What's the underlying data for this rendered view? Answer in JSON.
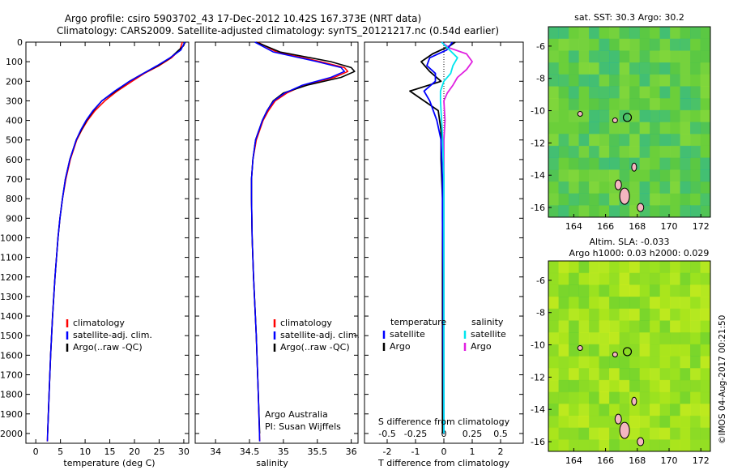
{
  "header": {
    "title_line1": "Argo profile: csiro 5903702_43 17-Dec-2012 10.42S 167.373E (NRT data)",
    "title_line2": "Climatology: CARS2009. Satellite-adjusted climatology: synTS_20121217.nc (0.54d earlier)"
  },
  "colors": {
    "climatology": "#ff0000",
    "satellite": "#0000ff",
    "argo": "#000000",
    "salinity_satellite": "#00e5ee",
    "salinity_argo": "#e020e0"
  },
  "chart_data": [
    {
      "id": "temperature",
      "type": "line",
      "xlabel": "temperature (deg C)",
      "ylabel": "",
      "xlim": [
        -2,
        31
      ],
      "ylim": [
        2050,
        0
      ],
      "x_ticks": [
        "0",
        "5",
        "10",
        "15",
        "20",
        "25",
        "30"
      ],
      "x_tick_values": [
        0,
        5,
        10,
        15,
        20,
        25,
        30
      ],
      "y_ticks": [
        "0",
        "100",
        "200",
        "300",
        "400",
        "500",
        "600",
        "700",
        "800",
        "900",
        "1000",
        "1100",
        "1200",
        "1300",
        "1400",
        "1500",
        "1600",
        "1700",
        "1800",
        "1900",
        "2000"
      ],
      "y_tick_values": [
        0,
        100,
        200,
        300,
        400,
        500,
        600,
        700,
        800,
        900,
        1000,
        1100,
        1200,
        1300,
        1400,
        1500,
        1600,
        1700,
        1800,
        1900,
        2000
      ],
      "legend": [
        "climatology",
        "satellite-adj. clim.",
        "Argo(..raw -QC)"
      ],
      "legend_position": "lower-center",
      "series": [
        {
          "name": "climatology",
          "depth": [
            0,
            40,
            80,
            120,
            160,
            200,
            250,
            300,
            350,
            400,
            450,
            500,
            600,
            700,
            800,
            900,
            1000,
            1200,
            1400,
            1600,
            1800,
            2000,
            2040
          ],
          "values": [
            29.7,
            29.2,
            27.5,
            25.0,
            22.0,
            19.5,
            16.5,
            14.0,
            12.0,
            10.5,
            9.3,
            8.3,
            7.0,
            6.1,
            5.4,
            4.9,
            4.5,
            3.9,
            3.4,
            3.0,
            2.7,
            2.4,
            2.35
          ]
        },
        {
          "name": "satellite-adj. clim.",
          "depth": [
            0,
            40,
            80,
            120,
            160,
            200,
            250,
            300,
            350,
            400,
            450,
            500,
            600,
            700,
            800,
            900,
            1000,
            1200,
            1400,
            1600,
            1800,
            2000,
            2040
          ],
          "values": [
            30.2,
            29.4,
            27.2,
            24.6,
            21.8,
            19.0,
            16.0,
            13.4,
            11.6,
            10.2,
            9.1,
            8.2,
            6.9,
            6.0,
            5.4,
            4.9,
            4.5,
            3.9,
            3.4,
            3.0,
            2.7,
            2.4,
            2.35
          ]
        },
        {
          "name": "Argo(..raw -QC)",
          "depth": [
            0,
            20,
            40,
            80,
            120,
            160,
            200,
            250,
            300,
            350,
            400,
            450,
            500,
            600,
            700,
            800,
            900,
            1000,
            1200,
            1400,
            1600,
            1800,
            2000
          ],
          "values": [
            30.3,
            29.9,
            29.0,
            27.3,
            24.8,
            21.8,
            19.0,
            16.2,
            13.4,
            11.7,
            10.3,
            9.2,
            8.2,
            6.9,
            6.0,
            5.4,
            4.9,
            4.5,
            3.9,
            3.4,
            3.0,
            2.7,
            2.4
          ]
        }
      ]
    },
    {
      "id": "salinity",
      "type": "line",
      "xlabel": "salinity",
      "xlim": [
        33.7,
        36.1
      ],
      "ylim": [
        2050,
        0
      ],
      "x_ticks": [
        "34",
        "34.5",
        "35",
        "35.5",
        "36"
      ],
      "x_tick_values": [
        34,
        34.5,
        35,
        35.5,
        36
      ],
      "legend": [
        "climatology",
        "satellite-adj. clim.",
        "Argo(..raw -QC)"
      ],
      "legend_position": "lower-right",
      "annotation": [
        "Argo Australia",
        "PI: Susan Wijffels"
      ],
      "series": [
        {
          "name": "climatology",
          "depth": [
            0,
            50,
            100,
            130,
            150,
            180,
            220,
            260,
            300,
            350,
            400,
            500,
            600,
            700,
            800,
            1000,
            1200,
            1500,
            1800,
            2040
          ],
          "values": [
            34.62,
            34.9,
            35.55,
            35.9,
            35.95,
            35.75,
            35.3,
            35.05,
            34.88,
            34.78,
            34.7,
            34.6,
            34.55,
            34.53,
            34.53,
            34.54,
            34.56,
            34.6,
            34.63,
            34.65
          ]
        },
        {
          "name": "satellite-adj. clim.",
          "depth": [
            0,
            50,
            100,
            130,
            150,
            180,
            220,
            260,
            300,
            350,
            400,
            500,
            600,
            700,
            800,
            1000,
            1200,
            1500,
            1800,
            2040
          ],
          "values": [
            34.58,
            34.85,
            35.5,
            35.85,
            35.9,
            35.7,
            35.28,
            35.02,
            34.86,
            34.76,
            34.69,
            34.59,
            34.55,
            34.53,
            34.53,
            34.54,
            34.56,
            34.6,
            34.63,
            34.65
          ]
        },
        {
          "name": "Argo(..raw -QC)",
          "depth": [
            0,
            50,
            100,
            130,
            150,
            180,
            220,
            260,
            300,
            350,
            400,
            500,
            600,
            700,
            800,
            1000,
            1200,
            1500,
            1800,
            2000
          ],
          "values": [
            34.6,
            34.95,
            35.7,
            36.0,
            36.05,
            35.85,
            35.35,
            35.0,
            34.85,
            34.76,
            34.69,
            34.59,
            34.55,
            34.53,
            34.53,
            34.54,
            34.56,
            34.6,
            34.63,
            34.65
          ]
        }
      ]
    },
    {
      "id": "differences",
      "type": "line",
      "xlabel": "T difference from climatology",
      "xlabel2": "S difference from climatology",
      "xlim": [
        -2.8,
        2.8
      ],
      "ylim": [
        2050,
        0
      ],
      "x_ticks": [
        "-2",
        "-1",
        "0",
        "1",
        "2"
      ],
      "x_tick_values": [
        -2,
        -1,
        0,
        1,
        2
      ],
      "x2_ticks": [
        "-0.5",
        "-0.25",
        "0",
        "0.25",
        "0.5"
      ],
      "x2_tick_values": [
        -0.5,
        -0.25,
        0,
        0.25,
        0.5
      ],
      "legend_groups": [
        {
          "heading": "temperature",
          "entries": [
            "satellite",
            "Argo"
          ]
        },
        {
          "heading": "salinity",
          "entries": [
            "satellite",
            "Argo"
          ]
        }
      ],
      "series": [
        {
          "name": "temperature satellite",
          "depth": [
            0,
            40,
            80,
            120,
            160,
            200,
            250,
            300,
            400,
            500,
            700,
            900,
            1200,
            1500,
            2000
          ],
          "values": [
            0.3,
            0.1,
            -0.5,
            -0.6,
            -0.3,
            -0.3,
            -0.7,
            -0.5,
            -0.25,
            -0.1,
            -0.05,
            -0.05,
            -0.02,
            -0.02,
            0.0
          ]
        },
        {
          "name": "temperature Argo",
          "depth": [
            0,
            20,
            60,
            100,
            150,
            200,
            250,
            280,
            350,
            450,
            600,
            800,
            1000,
            1200,
            1500,
            1800,
            2000
          ],
          "values": [
            0.4,
            0.2,
            -0.4,
            -0.8,
            -0.5,
            -0.1,
            -1.2,
            -0.9,
            -0.2,
            -0.1,
            -0.1,
            -0.05,
            -0.05,
            -0.05,
            -0.05,
            -0.05,
            -0.05
          ]
        },
        {
          "name": "salinity satellite",
          "depth": [
            0,
            40,
            80,
            120,
            160,
            200,
            250,
            300,
            400,
            500,
            700,
            1000,
            1500,
            2000
          ],
          "values": [
            -0.02,
            0.05,
            0.12,
            0.08,
            0.06,
            0.0,
            -0.03,
            -0.03,
            -0.02,
            -0.01,
            0.0,
            0.0,
            0.0,
            0.0
          ]
        },
        {
          "name": "salinity Argo",
          "depth": [
            0,
            30,
            60,
            100,
            140,
            180,
            220,
            260,
            300,
            400,
            500,
            700,
            1000,
            1500,
            2000
          ],
          "values": [
            -0.02,
            0.05,
            0.2,
            0.25,
            0.2,
            0.12,
            0.08,
            0.03,
            0.0,
            0.01,
            0.0,
            0.0,
            0.0,
            0.0,
            0.0
          ]
        }
      ]
    },
    {
      "id": "sst-map",
      "type": "heatmap",
      "title": "sat. SST: 30.3 Argo: 30.2",
      "x_ticks": [
        "164",
        "166",
        "168",
        "170",
        "172"
      ],
      "x_tick_values": [
        164,
        166,
        168,
        170,
        172
      ],
      "y_ticks": [
        "-6",
        "-8",
        "-10",
        "-12",
        "-14",
        "-16"
      ],
      "y_tick_values": [
        -6,
        -8,
        -10,
        -12,
        -14,
        -16
      ],
      "xlim": [
        162.4,
        172.6
      ],
      "ylim": [
        -16.6,
        -4.8
      ],
      "argo_position": [
        167.373,
        -10.42
      ]
    },
    {
      "id": "sla-map",
      "type": "heatmap",
      "title_line1": "Altim. SLA: -0.033",
      "title_line2": "Argo h1000: 0.03 h2000: 0.029",
      "x_ticks": [
        "164",
        "166",
        "168",
        "170",
        "172"
      ],
      "x_tick_values": [
        164,
        166,
        168,
        170,
        172
      ],
      "y_ticks": [
        "-6",
        "-8",
        "-10",
        "-12",
        "-14",
        "-16"
      ],
      "y_tick_values": [
        -6,
        -8,
        -10,
        -12,
        -14,
        -16
      ],
      "xlim": [
        162.4,
        172.6
      ],
      "ylim": [
        -16.6,
        -4.8
      ],
      "argo_position": [
        167.373,
        -10.42
      ]
    }
  ],
  "footer": {
    "credit": "©IMOS 04-Aug-2017 00:21:50"
  }
}
